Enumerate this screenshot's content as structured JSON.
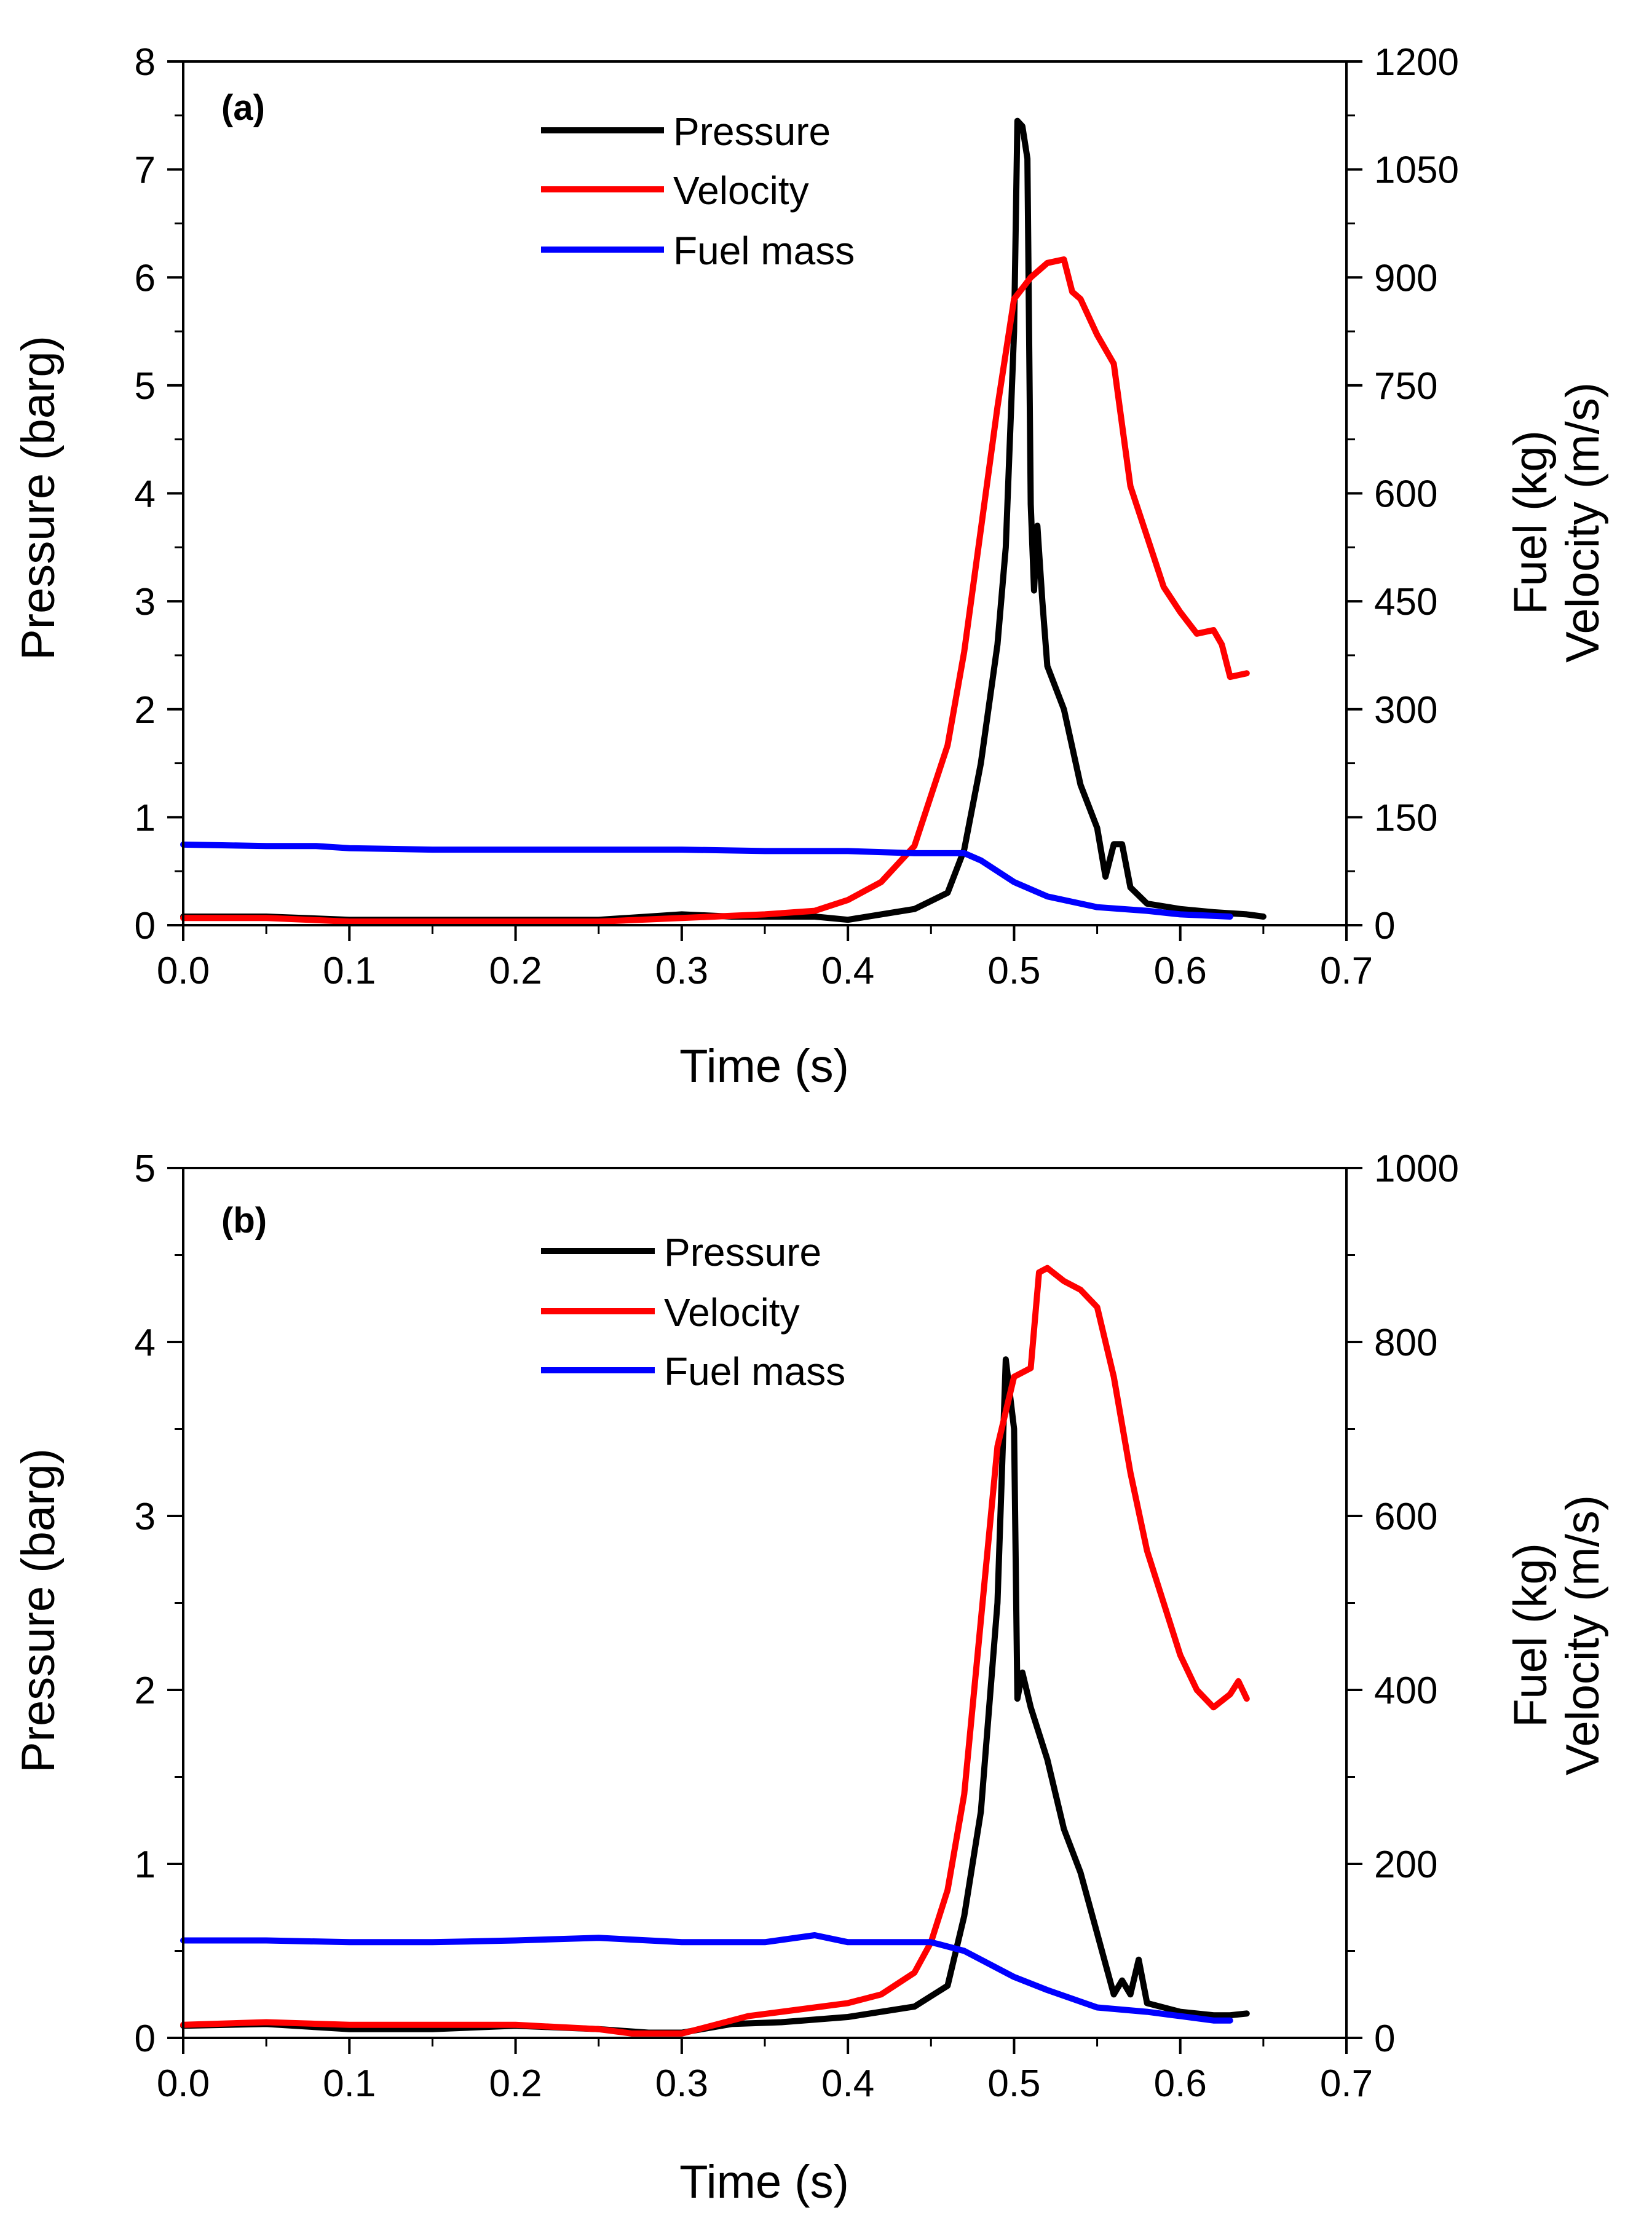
{
  "chart_data": [
    {
      "type": "line",
      "panel_label": "(a)",
      "xlabel": "Time (s)",
      "ylabel": "Pressure (barg)",
      "y2label_line1": "Fuel (kg)",
      "y2label_line2": "Velocity (m/s)",
      "xlim": [
        0,
        0.7
      ],
      "ylim": [
        0,
        8
      ],
      "y2lim": [
        0,
        1200
      ],
      "xticks": [
        "0.0",
        "0.1",
        "0.2",
        "0.3",
        "0.4",
        "0.5",
        "0.6",
        "0.7"
      ],
      "yticks": [
        "0",
        "1",
        "2",
        "3",
        "4",
        "5",
        "6",
        "7",
        "8"
      ],
      "y2ticks": [
        "0",
        "150",
        "300",
        "450",
        "600",
        "750",
        "900",
        "1050",
        "1200"
      ],
      "legend_position": "top-center",
      "series": [
        {
          "name": "Pressure",
          "color": "#000000",
          "axis": "left",
          "points": [
            [
              0,
              0.08
            ],
            [
              0.05,
              0.08
            ],
            [
              0.1,
              0.05
            ],
            [
              0.15,
              0.05
            ],
            [
              0.2,
              0.05
            ],
            [
              0.25,
              0.05
            ],
            [
              0.28,
              0.08
            ],
            [
              0.3,
              0.1
            ],
            [
              0.33,
              0.08
            ],
            [
              0.36,
              0.08
            ],
            [
              0.38,
              0.08
            ],
            [
              0.4,
              0.05
            ],
            [
              0.42,
              0.1
            ],
            [
              0.44,
              0.15
            ],
            [
              0.46,
              0.3
            ],
            [
              0.47,
              0.7
            ],
            [
              0.48,
              1.5
            ],
            [
              0.49,
              2.6
            ],
            [
              0.495,
              3.5
            ],
            [
              0.5,
              5.5
            ],
            [
              0.502,
              7.45
            ],
            [
              0.505,
              7.4
            ],
            [
              0.508,
              7.1
            ],
            [
              0.51,
              3.9
            ],
            [
              0.512,
              3.1
            ],
            [
              0.514,
              3.7
            ],
            [
              0.517,
              3.0
            ],
            [
              0.52,
              2.4
            ],
            [
              0.53,
              2.0
            ],
            [
              0.54,
              1.3
            ],
            [
              0.55,
              0.9
            ],
            [
              0.555,
              0.45
            ],
            [
              0.56,
              0.75
            ],
            [
              0.565,
              0.75
            ],
            [
              0.57,
              0.35
            ],
            [
              0.58,
              0.2
            ],
            [
              0.6,
              0.15
            ],
            [
              0.62,
              0.12
            ],
            [
              0.64,
              0.1
            ],
            [
              0.65,
              0.08
            ]
          ]
        },
        {
          "name": "Velocity",
          "color": "#ff0000",
          "axis": "right",
          "points": [
            [
              0,
              10
            ],
            [
              0.05,
              10
            ],
            [
              0.1,
              5
            ],
            [
              0.15,
              5
            ],
            [
              0.2,
              5
            ],
            [
              0.25,
              5
            ],
            [
              0.3,
              10
            ],
            [
              0.35,
              15
            ],
            [
              0.38,
              20
            ],
            [
              0.4,
              35
            ],
            [
              0.42,
              60
            ],
            [
              0.44,
              110
            ],
            [
              0.46,
              250
            ],
            [
              0.47,
              380
            ],
            [
              0.48,
              550
            ],
            [
              0.49,
              720
            ],
            [
              0.5,
              870
            ],
            [
              0.51,
              900
            ],
            [
              0.52,
              920
            ],
            [
              0.53,
              925
            ],
            [
              0.535,
              880
            ],
            [
              0.54,
              870
            ],
            [
              0.55,
              820
            ],
            [
              0.56,
              780
            ],
            [
              0.57,
              610
            ],
            [
              0.58,
              540
            ],
            [
              0.59,
              470
            ],
            [
              0.6,
              435
            ],
            [
              0.61,
              405
            ],
            [
              0.62,
              410
            ],
            [
              0.625,
              390
            ],
            [
              0.63,
              345
            ],
            [
              0.64,
              350
            ]
          ]
        },
        {
          "name": "Fuel mass",
          "color": "#0000ff",
          "axis": "right",
          "points": [
            [
              0,
              112
            ],
            [
              0.05,
              110
            ],
            [
              0.08,
              110
            ],
            [
              0.1,
              107
            ],
            [
              0.15,
              105
            ],
            [
              0.2,
              105
            ],
            [
              0.25,
              105
            ],
            [
              0.3,
              105
            ],
            [
              0.35,
              103
            ],
            [
              0.4,
              103
            ],
            [
              0.44,
              100
            ],
            [
              0.47,
              100
            ],
            [
              0.48,
              90
            ],
            [
              0.5,
              60
            ],
            [
              0.52,
              40
            ],
            [
              0.55,
              25
            ],
            [
              0.58,
              20
            ],
            [
              0.6,
              15
            ],
            [
              0.63,
              12
            ]
          ]
        }
      ]
    },
    {
      "type": "line",
      "panel_label": "(b)",
      "xlabel": "Time (s)",
      "ylabel": "Pressure (barg)",
      "y2label_line1": "Fuel (kg)",
      "y2label_line2": "Velocity (m/s)",
      "xlim": [
        0,
        0.7
      ],
      "ylim": [
        0,
        5
      ],
      "y2lim": [
        0,
        1000
      ],
      "xticks": [
        "0.0",
        "0.1",
        "0.2",
        "0.3",
        "0.4",
        "0.5",
        "0.6",
        "0.7"
      ],
      "yticks": [
        "0",
        "1",
        "2",
        "3",
        "4",
        "5"
      ],
      "y2ticks": [
        "0",
        "200",
        "400",
        "600",
        "800",
        "1000"
      ],
      "legend_position": "top-center",
      "series": [
        {
          "name": "Pressure",
          "color": "#000000",
          "axis": "left",
          "points": [
            [
              0,
              0.07
            ],
            [
              0.05,
              0.08
            ],
            [
              0.1,
              0.05
            ],
            [
              0.15,
              0.05
            ],
            [
              0.2,
              0.07
            ],
            [
              0.25,
              0.05
            ],
            [
              0.28,
              0.03
            ],
            [
              0.3,
              0.03
            ],
            [
              0.33,
              0.08
            ],
            [
              0.36,
              0.09
            ],
            [
              0.4,
              0.12
            ],
            [
              0.44,
              0.18
            ],
            [
              0.46,
              0.3
            ],
            [
              0.47,
              0.7
            ],
            [
              0.48,
              1.3
            ],
            [
              0.49,
              2.5
            ],
            [
              0.495,
              3.9
            ],
            [
              0.5,
              3.5
            ],
            [
              0.502,
              1.95
            ],
            [
              0.505,
              2.1
            ],
            [
              0.51,
              1.9
            ],
            [
              0.52,
              1.6
            ],
            [
              0.53,
              1.2
            ],
            [
              0.54,
              0.95
            ],
            [
              0.55,
              0.6
            ],
            [
              0.56,
              0.25
            ],
            [
              0.565,
              0.33
            ],
            [
              0.57,
              0.25
            ],
            [
              0.575,
              0.45
            ],
            [
              0.58,
              0.2
            ],
            [
              0.6,
              0.15
            ],
            [
              0.62,
              0.13
            ],
            [
              0.63,
              0.13
            ],
            [
              0.64,
              0.14
            ]
          ]
        },
        {
          "name": "Velocity",
          "color": "#ff0000",
          "axis": "right",
          "points": [
            [
              0,
              15
            ],
            [
              0.05,
              18
            ],
            [
              0.1,
              15
            ],
            [
              0.15,
              15
            ],
            [
              0.2,
              15
            ],
            [
              0.25,
              10
            ],
            [
              0.27,
              5
            ],
            [
              0.3,
              5
            ],
            [
              0.32,
              15
            ],
            [
              0.34,
              25
            ],
            [
              0.38,
              35
            ],
            [
              0.4,
              40
            ],
            [
              0.42,
              50
            ],
            [
              0.44,
              75
            ],
            [
              0.45,
              110
            ],
            [
              0.46,
              170
            ],
            [
              0.47,
              280
            ],
            [
              0.48,
              480
            ],
            [
              0.49,
              680
            ],
            [
              0.5,
              760
            ],
            [
              0.51,
              770
            ],
            [
              0.515,
              880
            ],
            [
              0.52,
              885
            ],
            [
              0.53,
              870
            ],
            [
              0.54,
              860
            ],
            [
              0.55,
              840
            ],
            [
              0.56,
              760
            ],
            [
              0.57,
              650
            ],
            [
              0.58,
              560
            ],
            [
              0.59,
              500
            ],
            [
              0.6,
              440
            ],
            [
              0.61,
              400
            ],
            [
              0.62,
              380
            ],
            [
              0.63,
              395
            ],
            [
              0.635,
              410
            ],
            [
              0.64,
              390
            ]
          ]
        },
        {
          "name": "Fuel mass",
          "color": "#0000ff",
          "axis": "right",
          "points": [
            [
              0,
              112
            ],
            [
              0.05,
              112
            ],
            [
              0.1,
              110
            ],
            [
              0.15,
              110
            ],
            [
              0.2,
              112
            ],
            [
              0.25,
              115
            ],
            [
              0.3,
              110
            ],
            [
              0.35,
              110
            ],
            [
              0.38,
              118
            ],
            [
              0.4,
              110
            ],
            [
              0.45,
              110
            ],
            [
              0.47,
              100
            ],
            [
              0.5,
              70
            ],
            [
              0.52,
              55
            ],
            [
              0.55,
              35
            ],
            [
              0.58,
              30
            ],
            [
              0.6,
              25
            ],
            [
              0.62,
              20
            ],
            [
              0.63,
              20
            ]
          ]
        }
      ]
    }
  ]
}
